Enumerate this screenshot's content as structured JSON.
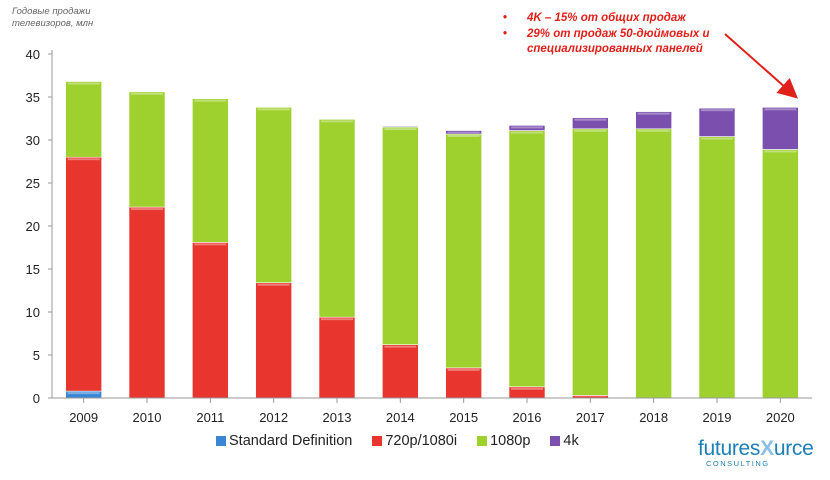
{
  "chart_data": {
    "type": "bar",
    "stacked": true,
    "ylabel_lines": [
      "Годовые продажи",
      "телевизоров, млн"
    ],
    "categories": [
      "2009",
      "2010",
      "2011",
      "2012",
      "2013",
      "2014",
      "2015",
      "2016",
      "2017",
      "2018",
      "2019",
      "2020"
    ],
    "ylim": [
      0,
      40
    ],
    "yticks": [
      0,
      5,
      10,
      15,
      20,
      25,
      30,
      35,
      40
    ],
    "grid": false,
    "legend_position": "bottom",
    "series": [
      {
        "name": "Standard Definition",
        "color": "#3a86d4",
        "values": [
          0.8,
          0,
          0,
          0,
          0,
          0,
          0,
          0,
          0,
          0,
          0,
          0
        ]
      },
      {
        "name": "720p/1080i",
        "color": "#e8352e",
        "values": [
          27.2,
          22.2,
          18.1,
          13.4,
          9.4,
          6.2,
          3.5,
          1.3,
          0.3,
          0,
          0,
          0
        ]
      },
      {
        "name": "1080p",
        "color": "#9fd12e",
        "values": [
          8.8,
          13.4,
          16.7,
          20.4,
          23.0,
          25.3,
          27.2,
          29.8,
          31.0,
          31.3,
          30.4,
          28.9
        ]
      },
      {
        "name": "4k",
        "color": "#7a4fae",
        "values": [
          0,
          0,
          0,
          0,
          0,
          0.1,
          0.4,
          0.6,
          1.3,
          2.0,
          3.3,
          4.9
        ]
      }
    ]
  },
  "annotation": {
    "lines": [
      "4K – 15% от общих продаж",
      "29% от продаж 50-дюймовых и специализированных панелей"
    ],
    "color": "#e0201b"
  },
  "logo": {
    "main_before": "futures",
    "main_x": "X",
    "main_after": "urce",
    "sub": "CONSULTING"
  }
}
